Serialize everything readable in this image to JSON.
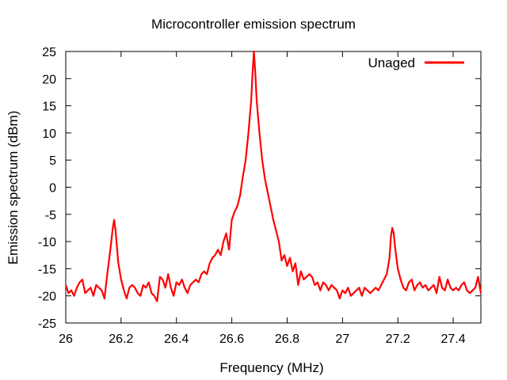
{
  "chart_data": {
    "type": "line",
    "title": "Microcontroller emission spectrum",
    "xlabel": "Frequency (MHz)",
    "ylabel": "Emission spectrum (dBm)",
    "xlim": [
      26,
      27.5
    ],
    "ylim": [
      -25,
      25
    ],
    "xticks": [
      26,
      26.2,
      26.4,
      26.6,
      26.8,
      27,
      27.2,
      27.4
    ],
    "xtick_labels": [
      "26",
      "26.2",
      "26.4",
      "26.6",
      "26.8",
      "27",
      "27.2",
      "27.4"
    ],
    "yticks": [
      -25,
      -20,
      -15,
      -10,
      -5,
      0,
      5,
      10,
      15,
      20,
      25
    ],
    "ytick_labels": [
      "-25",
      "-20",
      "-15",
      "-10",
      "-5",
      "0",
      "5",
      "10",
      "15",
      "20",
      "25"
    ],
    "grid": false,
    "legend_position": "top-right",
    "series": [
      {
        "name": "Unaged",
        "color": "#ff0000",
        "x": [
          26.0,
          26.01,
          26.02,
          26.03,
          26.04,
          26.05,
          26.06,
          26.07,
          26.08,
          26.09,
          26.1,
          26.11,
          26.12,
          26.13,
          26.14,
          26.15,
          26.16,
          26.17,
          26.175,
          26.18,
          26.185,
          26.19,
          26.2,
          26.21,
          26.22,
          26.23,
          26.24,
          26.25,
          26.26,
          26.27,
          26.28,
          26.29,
          26.3,
          26.31,
          26.32,
          26.33,
          26.34,
          26.35,
          26.36,
          26.37,
          26.38,
          26.39,
          26.4,
          26.41,
          26.42,
          26.43,
          26.44,
          26.45,
          26.46,
          26.47,
          26.48,
          26.49,
          26.5,
          26.51,
          26.52,
          26.53,
          26.54,
          26.55,
          26.56,
          26.57,
          26.58,
          26.59,
          26.6,
          26.61,
          26.62,
          26.63,
          26.64,
          26.65,
          26.66,
          26.67,
          26.675,
          26.68,
          26.685,
          26.69,
          26.7,
          26.71,
          26.72,
          26.73,
          26.74,
          26.75,
          26.76,
          26.77,
          26.78,
          26.79,
          26.8,
          26.81,
          26.82,
          26.83,
          26.84,
          26.85,
          26.86,
          26.87,
          26.88,
          26.89,
          26.9,
          26.91,
          26.92,
          26.93,
          26.94,
          26.95,
          26.96,
          26.97,
          26.98,
          26.99,
          27.0,
          27.01,
          27.02,
          27.03,
          27.04,
          27.05,
          27.06,
          27.07,
          27.08,
          27.09,
          27.1,
          27.11,
          27.12,
          27.13,
          27.14,
          27.15,
          27.16,
          27.17,
          27.175,
          27.18,
          27.185,
          27.19,
          27.2,
          27.21,
          27.22,
          27.23,
          27.24,
          27.25,
          27.26,
          27.27,
          27.28,
          27.29,
          27.3,
          27.31,
          27.32,
          27.33,
          27.34,
          27.35,
          27.36,
          27.37,
          27.38,
          27.39,
          27.4,
          27.41,
          27.42,
          27.43,
          27.44,
          27.45,
          27.46,
          27.47,
          27.48,
          27.49,
          27.5
        ],
        "y": [
          -18,
          -19.5,
          -19,
          -20,
          -18.5,
          -17.5,
          -17,
          -19.5,
          -19,
          -18.5,
          -20,
          -18,
          -18.5,
          -19,
          -20.5,
          -16,
          -12,
          -7.5,
          -6,
          -8,
          -11,
          -14,
          -17,
          -19,
          -20.5,
          -18.5,
          -18,
          -18.5,
          -19.5,
          -20,
          -18,
          -18.5,
          -17.5,
          -19.5,
          -20,
          -21,
          -16.5,
          -17,
          -18.5,
          -16,
          -18.5,
          -20,
          -17.5,
          -18,
          -17,
          -18.5,
          -19.5,
          -18,
          -17.5,
          -17,
          -17.5,
          -16,
          -15.5,
          -16,
          -14,
          -13,
          -12.5,
          -11.5,
          -12.5,
          -10,
          -8.5,
          -11.5,
          -6,
          -4.5,
          -3.5,
          -1.5,
          2,
          5,
          10,
          16,
          21,
          25,
          21,
          16,
          10,
          5,
          1.5,
          -1,
          -3.5,
          -6,
          -8,
          -10,
          -13.5,
          -12.5,
          -14.5,
          -13,
          -15.5,
          -14,
          -18,
          -15.5,
          -17,
          -16.5,
          -16,
          -16.5,
          -18,
          -17.5,
          -19,
          -17.5,
          -18,
          -19,
          -18,
          -18.5,
          -19,
          -20.5,
          -19,
          -19.5,
          -18.5,
          -20,
          -19.5,
          -19,
          -18.5,
          -20,
          -18.5,
          -19,
          -19.5,
          -19,
          -18.5,
          -19,
          -18,
          -17,
          -16,
          -13,
          -9,
          -7.5,
          -8.5,
          -11,
          -15,
          -17,
          -18.5,
          -19,
          -17.5,
          -17,
          -19,
          -18,
          -17.5,
          -18.5,
          -18,
          -19,
          -18.5,
          -18,
          -19.5,
          -16.5,
          -18.5,
          -19,
          -17,
          -18.5,
          -19,
          -18.5,
          -19,
          -18,
          -17.5,
          -19,
          -19.5,
          -19,
          -18.5,
          -16.5,
          -19.5
        ]
      }
    ]
  }
}
